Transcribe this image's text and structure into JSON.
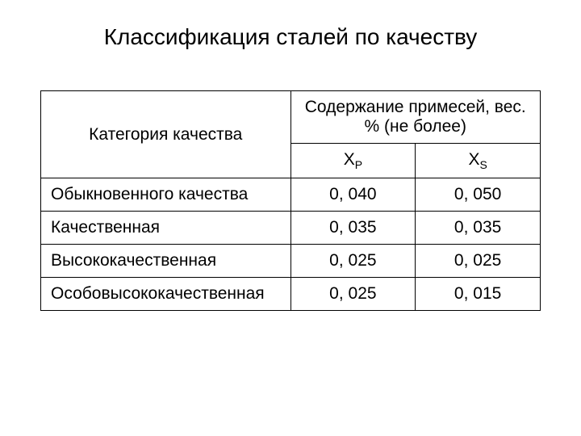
{
  "title": "Классификация сталей по качеству",
  "table": {
    "type": "table",
    "background_color": "#ffffff",
    "border_color": "#000000",
    "text_color": "#000000",
    "title_fontsize": 28,
    "cell_fontsize": 21,
    "column_widths": [
      "50%",
      "25%",
      "25%"
    ],
    "header": {
      "category_label": "Категория качества",
      "content_label": "Содержание примесей, вес. % (не более)",
      "sub_xp_base": "X",
      "sub_xp_sub": "P",
      "sub_xs_base": "X",
      "sub_xs_sub": "S"
    },
    "rows": [
      {
        "category": "Обыкновенного качества",
        "xp": "0, 040",
        "xs": "0, 050"
      },
      {
        "category": "Качественная",
        "xp": "0, 035",
        "xs": "0, 035"
      },
      {
        "category": "Высококачественная",
        "xp": "0, 025",
        "xs": "0, 025"
      },
      {
        "category": "Особовысококачественная",
        "xp": "0, 025",
        "xs": "0, 015"
      }
    ]
  }
}
